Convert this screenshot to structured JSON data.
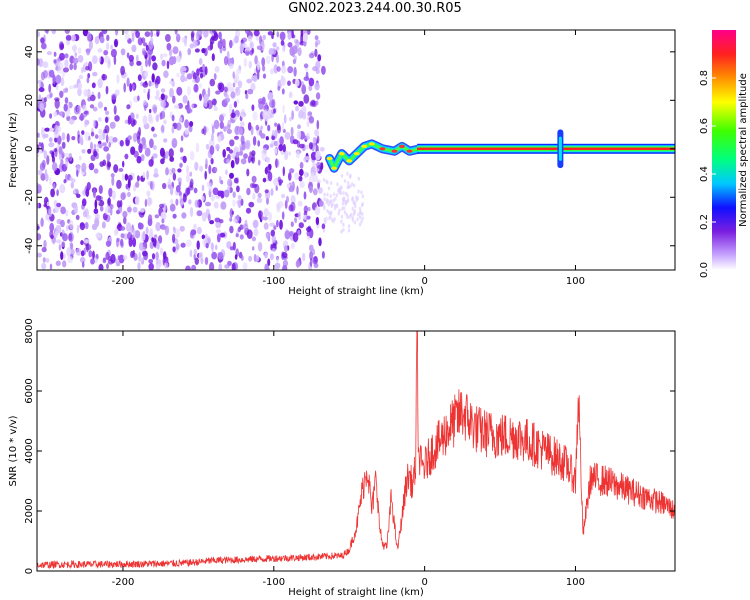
{
  "title": "GN02.2023.244.00.30.R05",
  "chart_data": [
    {
      "type": "heatmap",
      "xlabel": "Height of straight line (km)",
      "ylabel": "Frequency (Hz)",
      "xlim": [
        -257,
        166
      ],
      "ylim": [
        -50,
        49
      ],
      "xticks": [
        -200,
        -100,
        0,
        100
      ],
      "yticks": [
        -40,
        -20,
        0,
        20,
        40
      ],
      "noise_region_x": [
        -257,
        -67
      ],
      "signal": {
        "ridge_frequency_hz": 0,
        "ridge_x_range": [
          -67,
          166
        ],
        "spike_x": 90,
        "description_points": [
          {
            "x": -63,
            "y": -4
          },
          {
            "x": -60,
            "y": -8
          },
          {
            "x": -55,
            "y": -2
          },
          {
            "x": -50,
            "y": -5
          },
          {
            "x": -45,
            "y": -2
          },
          {
            "x": -40,
            "y": 1
          },
          {
            "x": -35,
            "y": 2
          },
          {
            "x": -28,
            "y": 0
          },
          {
            "x": -20,
            "y": -1
          },
          {
            "x": -15,
            "y": 1
          },
          {
            "x": -10,
            "y": -1
          },
          {
            "x": -3,
            "y": 0
          }
        ]
      },
      "colorbar": {
        "label": "Normalized spectral amplitude",
        "ticks": [
          0.0,
          0.2,
          0.4,
          0.6,
          0.8
        ],
        "range": [
          0,
          1
        ]
      }
    },
    {
      "type": "line",
      "xlabel": "Height of straight line (km)",
      "ylabel": "SNR (10 * v/v)",
      "xlim": [
        -257,
        166
      ],
      "ylim": [
        0,
        8000
      ],
      "xticks": [
        -200,
        -100,
        0,
        100
      ],
      "yticks": [
        0,
        2000,
        4000,
        6000,
        8000
      ],
      "series": [
        {
          "color": "#ee3333",
          "x": [
            -257,
            -240,
            -220,
            -200,
            -180,
            -160,
            -150,
            -140,
            -120,
            -100,
            -80,
            -60,
            -55,
            -50,
            -45,
            -42,
            -40,
            -38,
            -35,
            -32,
            -30,
            -28,
            -25,
            -22,
            -20,
            -18,
            -15,
            -12,
            -10,
            -8,
            -6,
            -5,
            -4,
            -2,
            0,
            5,
            10,
            15,
            20,
            25,
            30,
            35,
            40,
            50,
            60,
            70,
            80,
            90,
            95,
            100,
            102,
            105,
            110,
            120,
            130,
            140,
            150,
            160,
            166
          ],
          "y": [
            200,
            220,
            220,
            230,
            240,
            260,
            300,
            350,
            380,
            420,
            450,
            500,
            500,
            700,
            1500,
            2500,
            3000,
            3500,
            2000,
            3200,
            1500,
            900,
            800,
            2500,
            1500,
            700,
            1800,
            3000,
            3200,
            2800,
            3500,
            7800,
            3800,
            3500,
            3500,
            4000,
            4300,
            4700,
            5000,
            5300,
            5000,
            4700,
            4600,
            4500,
            4500,
            4300,
            4000,
            3700,
            3500,
            3000,
            6000,
            1200,
            3100,
            3000,
            2800,
            2600,
            2400,
            2200,
            2000
          ]
        }
      ]
    }
  ]
}
